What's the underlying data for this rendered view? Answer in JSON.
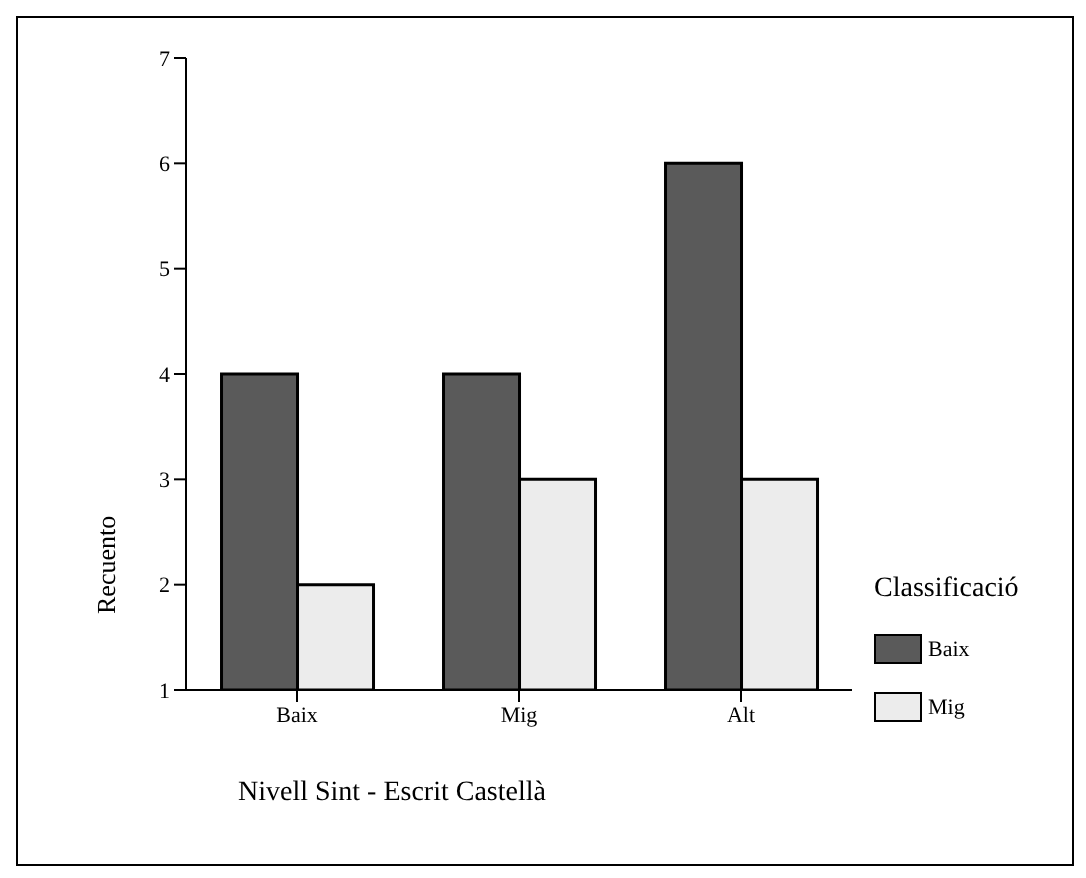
{
  "chart_data": {
    "type": "bar",
    "categories": [
      "Baix",
      "Mig",
      "Alt"
    ],
    "series": [
      {
        "name": "Baix",
        "color": "#5a5a5a",
        "values": [
          4,
          4,
          6
        ]
      },
      {
        "name": "Mig",
        "color": "#ececec",
        "values": [
          2,
          3,
          3
        ]
      }
    ],
    "xlabel": "Nivell Sint - Escrit Castellà",
    "ylabel": "Recuento",
    "legend_title": "Classificació",
    "ylim": [
      1,
      7
    ],
    "yticks": [
      1,
      2,
      3,
      4,
      5,
      6,
      7
    ],
    "grid": false,
    "legend": "right"
  }
}
